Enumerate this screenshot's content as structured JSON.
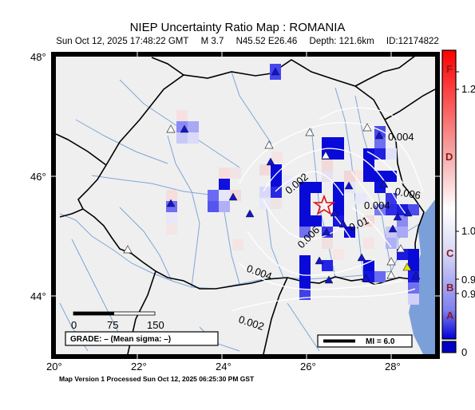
{
  "header": {
    "title": "NIEP Uncertainty Ratio Map : ROMANIA",
    "datetime": "Sun Oct 12, 2025 17:48:22 GMT",
    "magnitude": "M 3.7",
    "location": "N45.52 E26.46",
    "depth": "Depth: 121.6km",
    "event_id": "ID:12174822"
  },
  "map": {
    "lon_labels": [
      "20°",
      "22°",
      "24°",
      "26°",
      "28°"
    ],
    "lat_labels": [
      "48°",
      "46°",
      "44°"
    ],
    "contours": [
      "0.004",
      "0.006",
      "0.004",
      "0.002",
      "0.01",
      "0.006",
      "0.004",
      "0.002"
    ],
    "scalebar": {
      "labels": [
        "0",
        "75",
        "150"
      ]
    },
    "grade_box": "GRADE: – (Mean sigma: –)",
    "mi_box": "MI = 6.0",
    "colors": {
      "land": "#efefef",
      "sea": "#7b9fd9",
      "river": "#7fa6d8",
      "border": "#000000",
      "star": "#e01010"
    }
  },
  "colorbar": {
    "grades": [
      "F",
      "D",
      "C",
      "B",
      "A"
    ],
    "values": [
      "1.2",
      "1.0",
      "0.9",
      "0.9",
      "0"
    ],
    "colors": {
      "max": "#ff0000",
      "min": "#0000c8"
    }
  },
  "footer": {
    "text": "Map Version 1 Processed Sun Oct 12, 2025 06:25:30 PM GST"
  }
}
